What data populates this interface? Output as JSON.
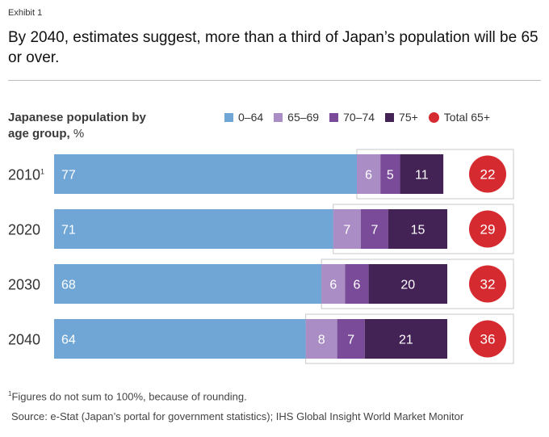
{
  "exhibit_label": "Exhibit 1",
  "headline": "By 2040, estimates suggest, more than a third of Japan’s population will be 65 or over.",
  "footnote_marker": "1",
  "footnote_text": "Figures do not sum to 100%, because of rounding.",
  "source": "Source: e-Stat (Japan’s portal for government statistics); IHS Global Insight World Market Monitor",
  "chart_data": {
    "type": "bar",
    "orientation": "horizontal",
    "stacked": true,
    "title": "Japanese population by age group,",
    "title_unit": "%",
    "categories": [
      "2010",
      "2020",
      "2030",
      "2040"
    ],
    "category_superscripts": [
      "1",
      "",
      "",
      ""
    ],
    "series": [
      {
        "name": "0–64",
        "color": "#6fa6d6",
        "values": [
          77,
          71,
          68,
          64
        ]
      },
      {
        "name": "65–69",
        "color": "#a98dc4",
        "values": [
          6,
          7,
          6,
          8
        ]
      },
      {
        "name": "70–74",
        "color": "#7a4b98",
        "values": [
          5,
          7,
          6,
          7
        ]
      },
      {
        "name": "75+",
        "color": "#432255",
        "values": [
          11,
          15,
          20,
          21
        ]
      }
    ],
    "total_series": {
      "name": "Total 65+",
      "color": "#d52b30",
      "values": [
        22,
        29,
        32,
        36
      ]
    },
    "xlim": [
      0,
      100
    ],
    "grid": false,
    "legend_position": "top-right"
  }
}
